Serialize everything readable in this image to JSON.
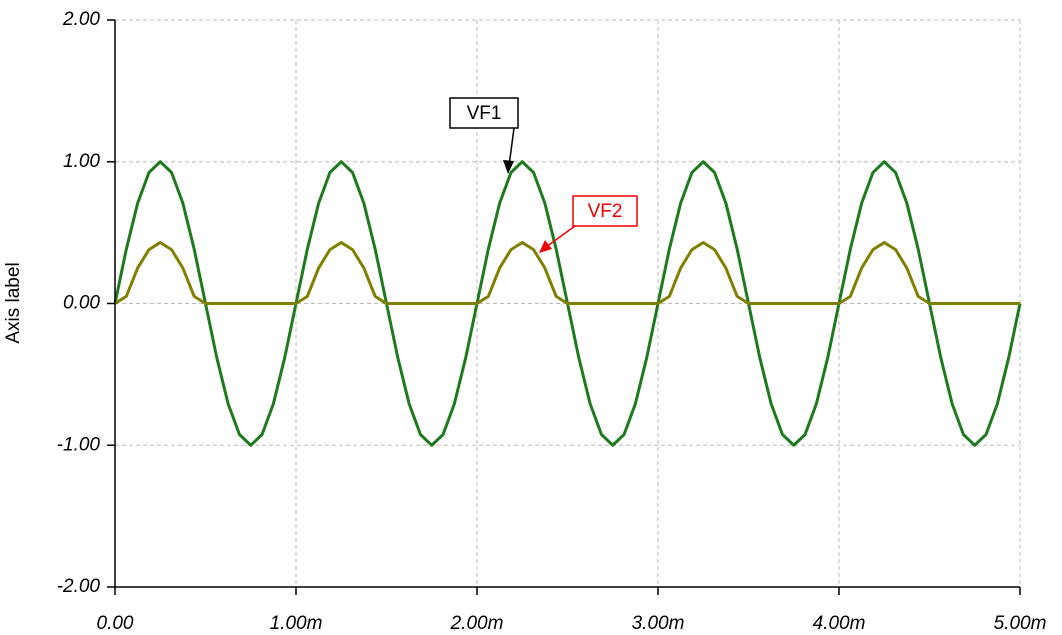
{
  "chart_data": {
    "type": "line",
    "y_label": "Axis label",
    "x": [
      0,
      6.25e-05,
      0.000125,
      0.0001875,
      0.00025,
      0.0003125,
      0.000375,
      0.0004375,
      0.0005,
      0.0005625,
      0.000625,
      0.0006875,
      0.00075,
      0.0008125,
      0.000875,
      0.0009375,
      0.001,
      0.0010625,
      0.001125,
      0.0011875,
      0.00125,
      0.0013125,
      0.001375,
      0.0014375,
      0.0015,
      0.0015625,
      0.001625,
      0.0016875,
      0.00175,
      0.0018125,
      0.001875,
      0.0019375,
      0.002,
      0.0020625,
      0.002125,
      0.0021875,
      0.00225,
      0.0023125,
      0.002375,
      0.0024375,
      0.0025,
      0.0025625,
      0.002625,
      0.0026875,
      0.00275,
      0.0028125,
      0.002875,
      0.0029375,
      0.003,
      0.0030625,
      0.003125,
      0.0031875,
      0.00325,
      0.0033125,
      0.003375,
      0.0034375,
      0.0035,
      0.0035625,
      0.003625,
      0.0036875,
      0.00375,
      0.0038125,
      0.003875,
      0.0039375,
      0.004,
      0.0040625,
      0.004125,
      0.0041875,
      0.00425,
      0.0043125,
      0.004375,
      0.0044375,
      0.0045,
      0.0045625,
      0.004625,
      0.0046875,
      0.00475,
      0.0048125,
      0.004875,
      0.0049375,
      0.005
    ],
    "series": [
      {
        "name": "VF1",
        "color": "#1f7a1f",
        "values": [
          0,
          0.383,
          0.707,
          0.924,
          1,
          0.924,
          0.707,
          0.383,
          0,
          -0.383,
          -0.707,
          -0.924,
          -1,
          -0.924,
          -0.707,
          -0.383,
          0,
          0.383,
          0.707,
          0.924,
          1,
          0.924,
          0.707,
          0.383,
          0,
          -0.383,
          -0.707,
          -0.924,
          -1,
          -0.924,
          -0.707,
          -0.383,
          0,
          0.383,
          0.707,
          0.924,
          1,
          0.924,
          0.707,
          0.383,
          0,
          -0.383,
          -0.707,
          -0.924,
          -1,
          -0.924,
          -0.707,
          -0.383,
          0,
          0.383,
          0.707,
          0.924,
          1,
          0.924,
          0.707,
          0.383,
          0,
          -0.383,
          -0.707,
          -0.924,
          -1,
          -0.924,
          -0.707,
          -0.383,
          0,
          0.383,
          0.707,
          0.924,
          1,
          0.924,
          0.707,
          0.383,
          0,
          -0.383,
          -0.707,
          -0.924,
          -1,
          -0.924,
          -0.707,
          -0.383,
          0
        ]
      },
      {
        "name": "VF2",
        "color": "#808000",
        "values": [
          0,
          0.05,
          0.25,
          0.38,
          0.43,
          0.38,
          0.25,
          0.05,
          0,
          0,
          0,
          0,
          0,
          0,
          0,
          0,
          0,
          0.05,
          0.25,
          0.38,
          0.43,
          0.38,
          0.25,
          0.05,
          0,
          0,
          0,
          0,
          0,
          0,
          0,
          0,
          0,
          0.05,
          0.25,
          0.38,
          0.43,
          0.38,
          0.25,
          0.05,
          0,
          0,
          0,
          0,
          0,
          0,
          0,
          0,
          0,
          0.05,
          0.25,
          0.38,
          0.43,
          0.38,
          0.25,
          0.05,
          0,
          0,
          0,
          0,
          0,
          0,
          0,
          0,
          0,
          0.05,
          0.25,
          0.38,
          0.43,
          0.38,
          0.25,
          0.05,
          0,
          0,
          0,
          0,
          0,
          0,
          0,
          0,
          0
        ]
      }
    ],
    "xlim": [
      0,
      0.005
    ],
    "xticks": [
      {
        "value": 0,
        "label": "0.00"
      },
      {
        "value": 0.001,
        "label": "1.00m"
      },
      {
        "value": 0.002,
        "label": "2.00m"
      },
      {
        "value": 0.003,
        "label": "3.00m"
      },
      {
        "value": 0.004,
        "label": "4.00m"
      },
      {
        "value": 0.005,
        "label": "5.00m"
      }
    ],
    "ylim": [
      -2,
      2
    ],
    "yticks": [
      {
        "value": -2,
        "label": "-2.00"
      },
      {
        "value": -1,
        "label": "-1.00"
      },
      {
        "value": 0,
        "label": "0.00"
      },
      {
        "value": 1,
        "label": "1.00"
      },
      {
        "value": 2,
        "label": "2.00"
      }
    ],
    "grid": true
  }
}
